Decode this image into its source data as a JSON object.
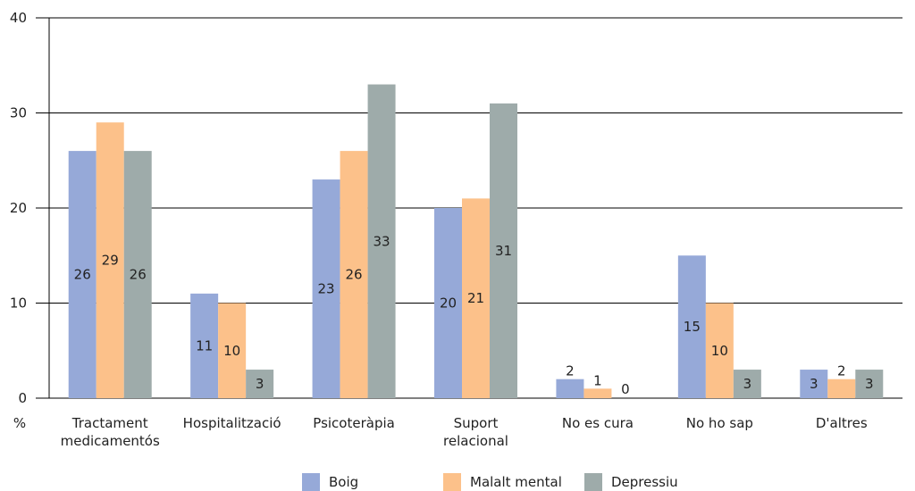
{
  "chart_data": {
    "type": "bar",
    "unit_label": "%",
    "categories": [
      [
        "Tractament",
        "medicamentós"
      ],
      [
        "Hospitalització"
      ],
      [
        "Psicoteràpia"
      ],
      [
        "Suport",
        "relacional"
      ],
      [
        "No es cura"
      ],
      [
        "No ho sap"
      ],
      [
        "D'altres"
      ]
    ],
    "series": [
      {
        "name": "Boig",
        "color": "#96a9d8",
        "values": [
          26,
          11,
          23,
          20,
          2,
          15,
          3
        ]
      },
      {
        "name": "Malalt mental",
        "color": "#fcc18a",
        "values": [
          29,
          10,
          26,
          21,
          1,
          10,
          2
        ]
      },
      {
        "name": "Depressiu",
        "color": "#9eabaa",
        "values": [
          26,
          3,
          33,
          31,
          0,
          3,
          3
        ]
      }
    ],
    "ylim": [
      0,
      40
    ],
    "yticks": [
      0,
      10,
      20,
      30,
      40
    ],
    "grid": true,
    "legend_position": "bottom"
  }
}
